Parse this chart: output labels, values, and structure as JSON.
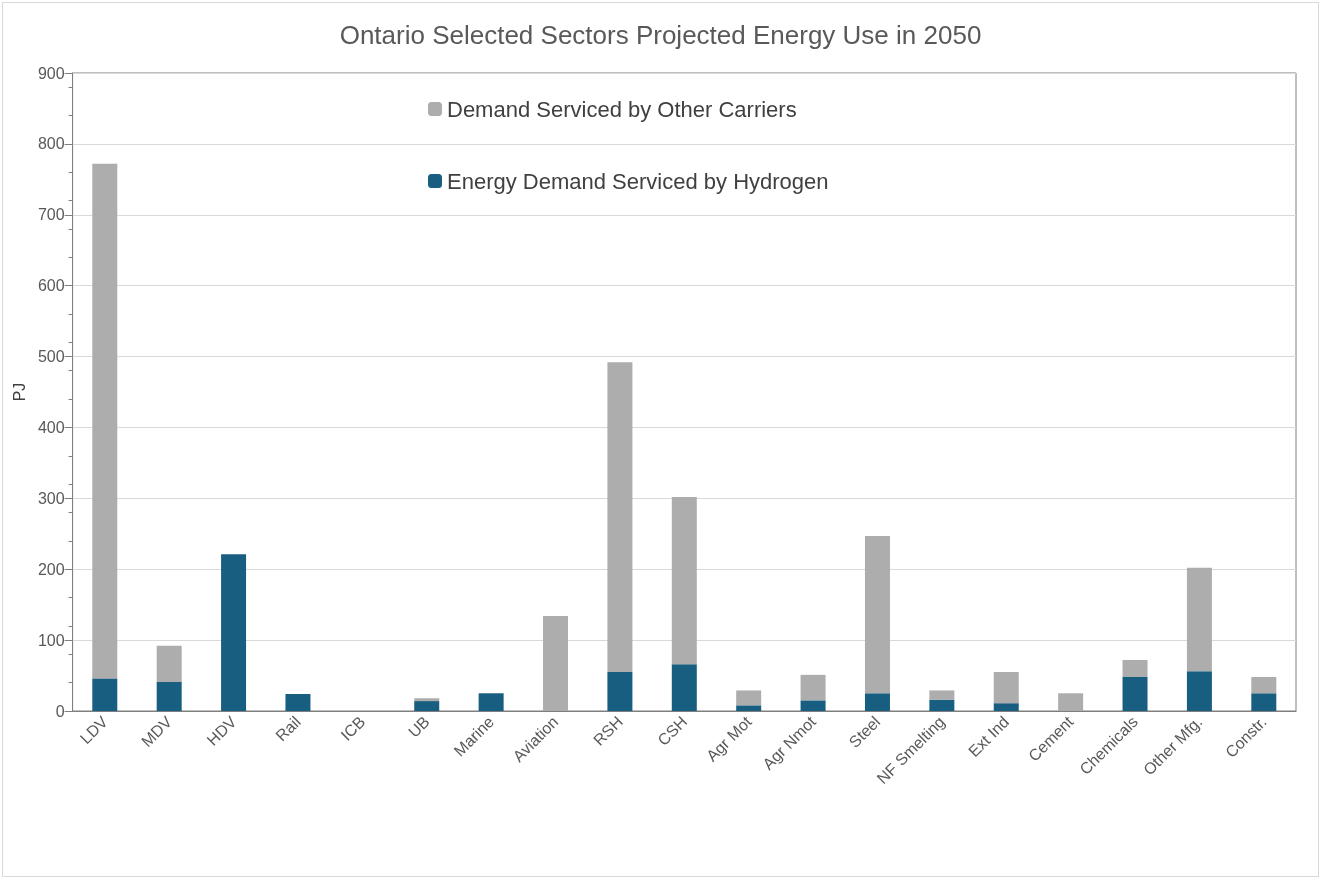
{
  "chart_data": {
    "type": "bar",
    "title": "Ontario Selected Sectors Projected Energy Use in 2050",
    "ylabel": "PJ",
    "categories": [
      "LDV",
      "MDV",
      "HDV",
      "Rail",
      "ICB",
      "UB",
      "Marine",
      "Aviation",
      "RSH",
      "CSH",
      "Agr Mot",
      "Agr Nmot",
      "Steel",
      "NF Smelting",
      "Ext Ind",
      "Cement",
      "Chemicals",
      "Other Mfg.",
      "Constr."
    ],
    "stacked": true,
    "series": [
      {
        "name": "Energy Demand Serviced by Hydrogen",
        "color": "#175e80",
        "values": [
          46,
          41,
          221,
          24,
          0,
          14,
          25,
          0,
          55,
          66,
          8,
          15,
          25,
          16,
          11,
          0,
          48,
          56,
          25
        ]
      },
      {
        "name": "Demand Serviced by Other Carriers",
        "color": "#adadad",
        "values": [
          726,
          51,
          0,
          0,
          0,
          4,
          0,
          134,
          437,
          236,
          21,
          36,
          222,
          13,
          44,
          25,
          24,
          146,
          23
        ]
      }
    ],
    "ylim": [
      0,
      900
    ],
    "yticks": [
      0,
      100,
      200,
      300,
      400,
      500,
      600,
      700,
      800,
      900
    ],
    "grid": "y",
    "legend": "top"
  }
}
